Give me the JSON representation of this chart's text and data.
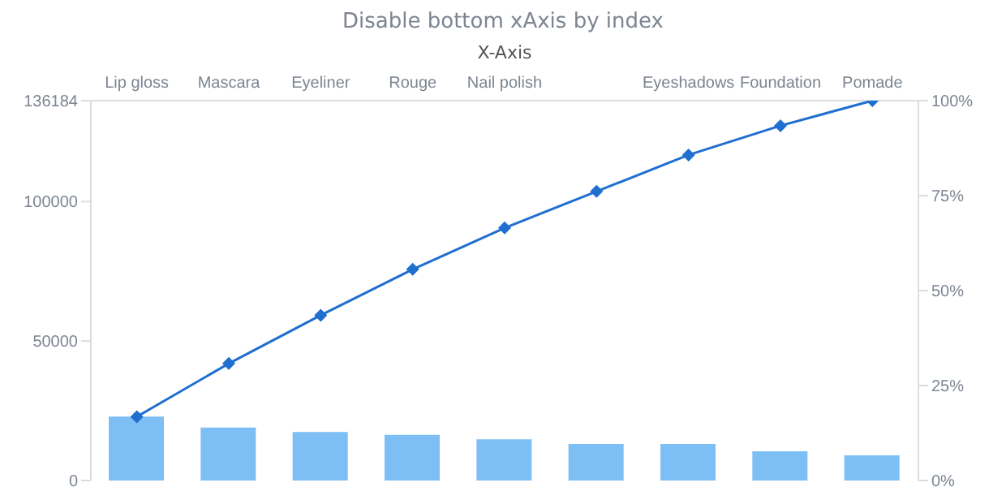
{
  "chart_data": {
    "type": "bar",
    "title": "Disable bottom xAxis by index",
    "xlabel": "X-Axis",
    "categories": [
      "Lip gloss",
      "Mascara",
      "Eyeliner",
      "Rouge",
      "Nail polish",
      null,
      "Eyeshadows",
      "Foundation",
      "Pomade"
    ],
    "series": [
      {
        "color": "#7dbef5",
        "values": [
          22900,
          19000,
          17400,
          16400,
          14800,
          13100,
          13100,
          10500,
          9000
        ]
      },
      {
        "type": "line",
        "axis": "y2",
        "color": "#1e6fd0",
        "marker": "diamond",
        "values": [
          16.8,
          30.8,
          43.5,
          55.6,
          66.5,
          76.1,
          85.7,
          93.4,
          100
        ]
      }
    ],
    "ylim": [
      0,
      136184
    ],
    "yticks": [
      0,
      50000,
      100000,
      136184
    ],
    "y2lim": [
      0,
      100
    ],
    "y2ticks": [
      {
        "value": 0,
        "label": "0%"
      },
      {
        "value": 25,
        "label": "25%"
      },
      {
        "value": 50,
        "label": "50%"
      },
      {
        "value": 75,
        "label": "75%"
      },
      {
        "value": 100,
        "label": "100%"
      }
    ],
    "grid": false
  }
}
